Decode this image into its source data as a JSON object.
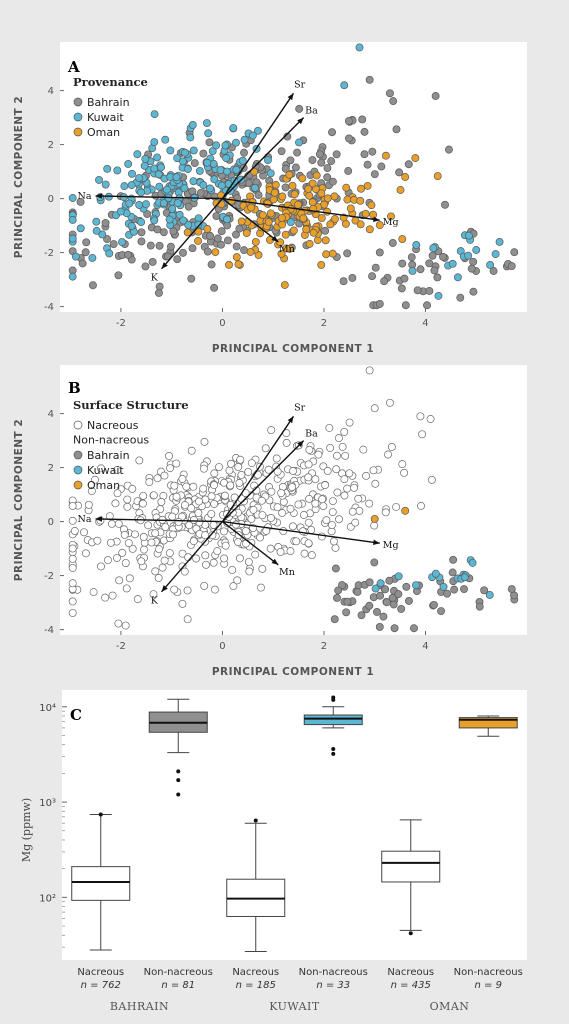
{
  "chart_data": [
    {
      "type": "scatter",
      "panel": "A",
      "xlabel": "PRINCIPAL COMPONENT 1",
      "ylabel": "PRINCIPAL COMPONENT 2",
      "xlim": [
        -3.2,
        6.0
      ],
      "ylim": [
        -4.2,
        5.8
      ],
      "xticks": [
        -2,
        0,
        2,
        4
      ],
      "yticks": [
        -4,
        -2,
        0,
        2,
        4
      ],
      "legend": {
        "title": "Provenance",
        "position": "top-left",
        "entries": [
          {
            "name": "Bahrain",
            "color": "#8f8f8f"
          },
          {
            "name": "Kuwait",
            "color": "#5bb7d3"
          },
          {
            "name": "Oman",
            "color": "#e8a02a"
          }
        ]
      },
      "clusters": [
        {
          "series": "Bahrain",
          "cx": 0.3,
          "cy": 0.0,
          "sx": 1.5,
          "sy": 1.4,
          "n": 260,
          "cov": 0.55
        },
        {
          "series": "Bahrain",
          "cx": 4.0,
          "cy": -2.7,
          "sx": 1.0,
          "sy": 0.6,
          "n": 45,
          "cov": 0.2
        },
        {
          "series": "Kuwait",
          "cx": -0.9,
          "cy": 0.4,
          "sx": 1.0,
          "sy": 1.0,
          "n": 200,
          "cov": 0.45
        },
        {
          "series": "Kuwait",
          "cx": 4.6,
          "cy": -2.0,
          "sx": 0.6,
          "sy": 0.4,
          "n": 18,
          "cov": 0.3
        },
        {
          "series": "Oman",
          "cx": 1.4,
          "cy": -0.7,
          "sx": 0.9,
          "sy": 0.9,
          "n": 160,
          "cov": 0.3
        }
      ],
      "points": [
        {
          "series": "Bahrain",
          "x": 2.9,
          "y": 4.4
        },
        {
          "series": "Bahrain",
          "x": 3.3,
          "y": 3.9
        },
        {
          "series": "Bahrain",
          "x": 4.2,
          "y": 3.8
        },
        {
          "series": "Bahrain",
          "x": 5.7,
          "y": -2.5
        },
        {
          "series": "Bahrain",
          "x": 3.1,
          "y": -3.9
        },
        {
          "series": "Kuwait",
          "x": 2.7,
          "y": 5.6
        },
        {
          "series": "Kuwait",
          "x": 2.4,
          "y": 4.2
        },
        {
          "series": "Oman",
          "x": 3.6,
          "y": 0.8
        },
        {
          "series": "Oman",
          "x": 3.8,
          "y": 1.5
        }
      ],
      "loadings": [
        {
          "label": "Na",
          "x": -2.5,
          "y": 0.1
        },
        {
          "label": "Sr",
          "x": 1.4,
          "y": 3.9
        },
        {
          "label": "Ba",
          "x": 1.6,
          "y": 3.0
        },
        {
          "label": "Mg",
          "x": 3.1,
          "y": -0.8
        },
        {
          "label": "Mn",
          "x": 1.1,
          "y": -1.6
        },
        {
          "label": "K",
          "x": -1.2,
          "y": -2.6
        }
      ]
    },
    {
      "type": "scatter",
      "panel": "B",
      "xlabel": "PRINCIPAL COMPONENT 1",
      "ylabel": "PRINCIPAL COMPONENT 2",
      "xlim": [
        -3.2,
        6.0
      ],
      "ylim": [
        -4.2,
        5.8
      ],
      "xticks": [
        -2,
        0,
        2,
        4
      ],
      "yticks": [
        -4,
        -2,
        0,
        2,
        4
      ],
      "legend": {
        "title": "Surface Structure",
        "position": "top-left",
        "entries": [
          {
            "name": "Nacreous",
            "color": "#ffffff"
          },
          {
            "name": "Non-nacreous",
            "header": true
          },
          {
            "name": "Bahrain",
            "color": "#8f8f8f"
          },
          {
            "name": "Kuwait",
            "color": "#5bb7d3"
          },
          {
            "name": "Oman",
            "color": "#e8a02a"
          }
        ]
      },
      "clusters": [
        {
          "series": "Nacreous",
          "cx": 0.0,
          "cy": 0.3,
          "sx": 1.5,
          "sy": 1.3,
          "n": 520,
          "cov": 0.45
        },
        {
          "series": "Bahrain",
          "cx": 3.4,
          "cy": -2.8,
          "sx": 1.0,
          "sy": 0.5,
          "n": 60,
          "cov": 0.2
        },
        {
          "series": "Kuwait",
          "cx": 4.6,
          "cy": -2.0,
          "sx": 0.6,
          "sy": 0.35,
          "n": 16,
          "cov": 0.3
        }
      ],
      "points": [
        {
          "series": "Nacreous",
          "x": 2.9,
          "y": 5.6
        },
        {
          "series": "Nacreous",
          "x": 3.3,
          "y": 4.4
        },
        {
          "series": "Nacreous",
          "x": 3.0,
          "y": 4.2
        },
        {
          "series": "Nacreous",
          "x": 3.9,
          "y": 3.9
        },
        {
          "series": "Nacreous",
          "x": 4.1,
          "y": 3.8
        },
        {
          "series": "Oman",
          "x": 3.0,
          "y": 0.1
        },
        {
          "series": "Oman",
          "x": 3.6,
          "y": 0.4
        },
        {
          "series": "Bahrain",
          "x": 5.7,
          "y": -2.5
        },
        {
          "series": "Bahrain",
          "x": 3.1,
          "y": -3.9
        }
      ],
      "loadings": [
        {
          "label": "Na",
          "x": -2.5,
          "y": 0.1
        },
        {
          "label": "Sr",
          "x": 1.4,
          "y": 3.9
        },
        {
          "label": "Ba",
          "x": 1.6,
          "y": 3.0
        },
        {
          "label": "Mg",
          "x": 3.1,
          "y": -0.8
        },
        {
          "label": "Mn",
          "x": 1.1,
          "y": -1.6
        },
        {
          "label": "K",
          "x": -1.2,
          "y": -2.6
        }
      ]
    },
    {
      "type": "box",
      "panel": "C",
      "ylabel": "Mg (ppmw)",
      "yscale": "log",
      "ylim": [
        22,
        15000
      ],
      "yticks": [
        {
          "value": 100,
          "label": "10²"
        },
        {
          "value": 1000,
          "label": "10³"
        },
        {
          "value": 10000,
          "label": "10⁴"
        }
      ],
      "groups": [
        "BAHRAIN",
        "KUWAIT",
        "OMAN"
      ],
      "boxes": [
        {
          "group": "BAHRAIN",
          "label": "Nacreous",
          "n": "n = 762",
          "color": "#ffffff",
          "min": 28,
          "q1": 93,
          "median": 145,
          "q3": 210,
          "max": 740,
          "outliers": [
            740
          ]
        },
        {
          "group": "BAHRAIN",
          "label": "Non-nacreous",
          "n": "n = 81",
          "color": "#8f8f8f",
          "min": 3300,
          "q1": 5400,
          "median": 6800,
          "q3": 8800,
          "max": 12000,
          "outliers": [
            2100,
            1700,
            1200
          ]
        },
        {
          "group": "KUWAIT",
          "label": "Nacreous",
          "n": "n = 185",
          "color": "#ffffff",
          "min": 27,
          "q1": 63,
          "median": 97,
          "q3": 155,
          "max": 600,
          "outliers": [
            640
          ]
        },
        {
          "group": "KUWAIT",
          "label": "Non-nacreous",
          "n": "n = 33",
          "color": "#5bb7d3",
          "min": 6000,
          "q1": 6500,
          "median": 7500,
          "q3": 8200,
          "max": 10000,
          "outliers": [
            12500,
            11800,
            3600,
            3200
          ]
        },
        {
          "group": "OMAN",
          "label": "Nacreous",
          "n": "n = 435",
          "color": "#ffffff",
          "min": 45,
          "q1": 145,
          "median": 230,
          "q3": 305,
          "max": 650,
          "outliers": [
            42
          ]
        },
        {
          "group": "OMAN",
          "label": "Non-nacreous",
          "n": "n = 9",
          "color": "#e8a02a",
          "min": 4900,
          "q1": 6000,
          "median": 7300,
          "q3": 7700,
          "max": 8000,
          "outliers": []
        }
      ]
    }
  ]
}
